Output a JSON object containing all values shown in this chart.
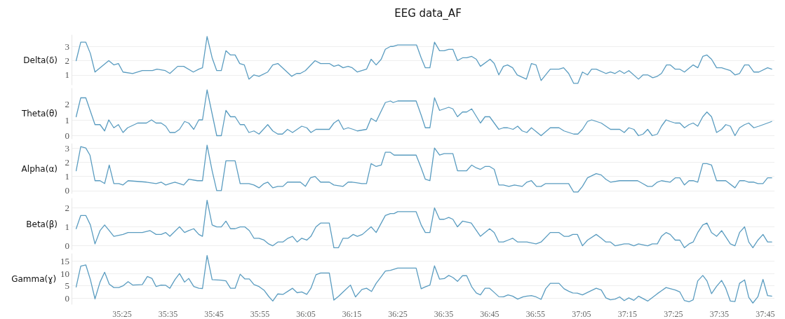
{
  "chart_data": [
    {
      "type": "line",
      "title": "EEG data_AF",
      "ylabel": "Delta(δ)",
      "xlim": [
        2114,
        2267
      ],
      "ylim": [
        0.3,
        3.8
      ],
      "yticks": [
        1,
        2,
        3
      ],
      "grid": "y",
      "marker": "none",
      "line_style": "solid",
      "tick_labels": "y",
      "series": [
        {
          "color": "#5a9cc0",
          "x": [
            2115.0,
            2116.0,
            2117.1,
            2118.1,
            2119.1,
            2120.2,
            2122.1,
            2123.2,
            2124.2,
            2125.2,
            2127.3,
            2129.4,
            2131.6,
            2132.6,
            2134.4,
            2135.4,
            2137.1,
            2138.4,
            2140.5,
            2141.7,
            2142.5,
            2143.5,
            2144.6,
            2145.6,
            2146.6,
            2147.6,
            2148.6,
            2149.6,
            2150.6,
            2151.6,
            2152.6,
            2153.7,
            2154.8,
            2156.7,
            2157.8,
            2158.9,
            2161.9,
            2163.0,
            2163.8,
            2164.9,
            2167.0,
            2168.2,
            2170.1,
            2171.1,
            2172.1,
            2173.1,
            2174.2,
            2175.1,
            2176.2,
            2178.2,
            2179.2,
            2180.3,
            2181.4,
            2182.3,
            2183.4,
            2184.0,
            2185.0,
            2189.1,
            2190.1,
            2191.0,
            2192.0,
            2193.0,
            2194.1,
            2195.1,
            2196.1,
            2197.0,
            2198.0,
            2199.1,
            2200.0,
            2201.1,
            2202.1,
            2203.0,
            2205.1,
            2206.0,
            2207.0,
            2208.0,
            2208.9,
            2210.0,
            2211.0,
            2213.0,
            2214.1,
            2215.1,
            2216.2,
            2218.2,
            2220.1,
            2221.1,
            2222.2,
            2223.3,
            2224.2,
            2225.2,
            2226.3,
            2227.2,
            2228.2,
            2230.3,
            2231.3,
            2232.3,
            2233.3,
            2234.3,
            2235.3,
            2237.4,
            2238.4,
            2239.4,
            2240.5,
            2241.5,
            2242.4,
            2243.5,
            2244.3,
            2245.4,
            2246.4,
            2247.4,
            2249.3,
            2250.3,
            2251.4,
            2252.3,
            2253.3,
            2254.4,
            2255.5,
            2256.4,
            2257.4,
            2258.4,
            2259.4,
            2260.5,
            2261.4,
            2262.5,
            2263.6,
            2265.5,
            2266.4
          ],
          "values": [
            2.0,
            3.3,
            3.3,
            2.5,
            1.2,
            1.5,
            2.0,
            1.7,
            1.8,
            1.2,
            1.1,
            1.3,
            1.3,
            1.4,
            1.3,
            1.1,
            1.6,
            1.6,
            1.2,
            1.4,
            1.5,
            3.7,
            2.2,
            1.3,
            1.3,
            2.7,
            2.4,
            2.4,
            1.8,
            1.7,
            0.7,
            1.0,
            0.9,
            1.2,
            1.7,
            1.8,
            0.9,
            1.1,
            1.1,
            1.3,
            2.0,
            1.8,
            1.8,
            1.6,
            1.7,
            1.5,
            1.6,
            1.5,
            1.2,
            1.4,
            2.1,
            1.7,
            2.1,
            2.8,
            3.0,
            3.0,
            3.1,
            3.1,
            2.2,
            1.5,
            1.5,
            3.3,
            2.7,
            2.7,
            2.8,
            2.8,
            2.0,
            2.2,
            2.2,
            2.3,
            2.1,
            1.6,
            2.1,
            1.8,
            1.0,
            1.6,
            1.7,
            1.5,
            1.0,
            0.7,
            1.8,
            1.7,
            0.6,
            1.4,
            1.4,
            1.5,
            1.1,
            0.4,
            0.4,
            1.2,
            1.0,
            1.4,
            1.4,
            1.1,
            1.2,
            1.1,
            1.3,
            1.1,
            1.3,
            0.7,
            1.0,
            1.0,
            0.8,
            0.9,
            1.1,
            1.7,
            1.7,
            1.4,
            1.4,
            1.2,
            1.7,
            1.5,
            2.3,
            2.4,
            2.1,
            1.5,
            1.5,
            1.4,
            1.3,
            1.0,
            1.1,
            1.7,
            1.7,
            1.2,
            1.2,
            1.5,
            1.4
          ]
        }
      ]
    },
    {
      "type": "line",
      "ylabel": "Theta(θ)",
      "xlim": [
        2114,
        2267
      ],
      "ylim": [
        -0.2,
        3.0
      ],
      "yticks": [
        0,
        1,
        2
      ],
      "grid": "y",
      "marker": "none",
      "line_style": "solid",
      "tick_labels": "y",
      "series": [
        {
          "color": "#5a9cc0",
          "x": [
            2115.0,
            2116.0,
            2117.1,
            2119.1,
            2120.2,
            2121.2,
            2122.1,
            2123.2,
            2124.2,
            2125.2,
            2126.2,
            2128.4,
            2130.3,
            2131.4,
            2132.4,
            2133.5,
            2134.5,
            2135.4,
            2136.5,
            2137.5,
            2138.6,
            2139.5,
            2140.6,
            2141.7,
            2142.5,
            2143.5,
            2145.6,
            2146.6,
            2147.6,
            2148.6,
            2149.6,
            2150.7,
            2151.6,
            2152.6,
            2153.7,
            2154.8,
            2156.7,
            2157.8,
            2158.9,
            2159.9,
            2161.0,
            2162.1,
            2164.1,
            2165.2,
            2166.1,
            2167.2,
            2170.1,
            2171.1,
            2172.1,
            2173.2,
            2174.2,
            2175.3,
            2176.2,
            2178.2,
            2179.2,
            2180.3,
            2182.3,
            2183.4,
            2184.0,
            2185.0,
            2189.0,
            2190.1,
            2191.0,
            2192.0,
            2193.0,
            2194.1,
            2195.1,
            2196.1,
            2197.0,
            2198.0,
            2199.1,
            2200.0,
            2201.1,
            2203.0,
            2204.0,
            2205.0,
            2207.0,
            2208.0,
            2208.9,
            2210.1,
            2211.1,
            2212.1,
            2213.1,
            2214.1,
            2216.2,
            2218.2,
            2220.1,
            2221.2,
            2223.3,
            2224.2,
            2225.2,
            2226.3,
            2227.2,
            2229.3,
            2231.3,
            2233.3,
            2234.3,
            2235.3,
            2236.4,
            2237.4,
            2238.4,
            2239.4,
            2240.4,
            2241.5,
            2242.4,
            2243.4,
            2244.3,
            2245.4,
            2246.4,
            2247.4,
            2248.4,
            2249.3,
            2250.3,
            2251.4,
            2252.3,
            2253.3,
            2254.4,
            2255.5,
            2256.4,
            2257.4,
            2258.4,
            2259.4,
            2260.5,
            2261.4,
            2262.5,
            2263.6,
            2265.5,
            2266.4
          ],
          "values": [
            1.2,
            2.4,
            2.4,
            0.7,
            0.7,
            0.3,
            1.0,
            0.5,
            0.7,
            0.2,
            0.5,
            0.8,
            0.8,
            1.0,
            0.8,
            0.8,
            0.6,
            0.2,
            0.2,
            0.4,
            0.9,
            0.8,
            0.4,
            1.0,
            1.0,
            2.9,
            0.0,
            0.0,
            1.6,
            1.2,
            1.2,
            0.7,
            0.7,
            0.2,
            0.3,
            0.1,
            0.7,
            0.3,
            0.1,
            0.1,
            0.4,
            0.2,
            0.6,
            0.5,
            0.2,
            0.4,
            0.4,
            0.8,
            1.0,
            0.4,
            0.5,
            0.4,
            0.3,
            0.4,
            1.1,
            0.9,
            2.1,
            2.2,
            2.1,
            2.2,
            2.2,
            1.3,
            0.5,
            0.5,
            2.4,
            1.6,
            1.7,
            1.8,
            1.7,
            1.2,
            1.5,
            1.5,
            1.7,
            0.8,
            1.2,
            1.2,
            0.4,
            0.5,
            0.5,
            0.4,
            0.6,
            0.3,
            0.2,
            0.5,
            0.0,
            0.5,
            0.5,
            0.3,
            0.1,
            0.1,
            0.4,
            0.9,
            1.0,
            0.8,
            0.4,
            0.4,
            0.2,
            0.5,
            0.4,
            0.0,
            0.1,
            0.4,
            0.0,
            0.1,
            0.6,
            1.0,
            0.9,
            0.8,
            0.8,
            0.5,
            0.7,
            0.8,
            0.6,
            1.2,
            1.5,
            1.2,
            0.2,
            0.4,
            0.7,
            0.6,
            0.0,
            0.5,
            0.7,
            0.8,
            0.5,
            0.6,
            0.8,
            0.9
          ]
        }
      ]
    },
    {
      "type": "line",
      "ylabel": "Alpha(α)",
      "xlim": [
        2114,
        2267
      ],
      "ylim": [
        -0.2,
        3.3
      ],
      "yticks": [
        0,
        1,
        2,
        3
      ],
      "grid": "y",
      "marker": "none",
      "line_style": "solid",
      "tick_labels": "y",
      "series": [
        {
          "color": "#5a9cc0",
          "x": [
            2115.0,
            2116.0,
            2117.1,
            2118.0,
            2119.1,
            2120.2,
            2121.2,
            2122.2,
            2123.2,
            2124.3,
            2125.2,
            2126.3,
            2130.3,
            2132.4,
            2133.5,
            2134.5,
            2135.4,
            2136.5,
            2137.5,
            2138.4,
            2139.5,
            2141.4,
            2142.5,
            2143.5,
            2144.6,
            2145.6,
            2146.6,
            2147.6,
            2149.6,
            2150.7,
            2152.6,
            2153.7,
            2154.8,
            2155.9,
            2156.7,
            2157.8,
            2158.9,
            2160.0,
            2161.0,
            2163.8,
            2164.9,
            2166.0,
            2167.0,
            2168.2,
            2170.1,
            2171.1,
            2173.1,
            2174.2,
            2175.1,
            2177.2,
            2178.2,
            2179.2,
            2180.3,
            2181.4,
            2182.3,
            2183.4,
            2184.2,
            2189.0,
            2190.1,
            2191.0,
            2192.0,
            2193.0,
            2194.1,
            2195.1,
            2197.0,
            2198.0,
            2200.0,
            2201.1,
            2202.1,
            2203.0,
            2204.0,
            2205.0,
            2206.0,
            2207.0,
            2208.0,
            2209.2,
            2210.4,
            2212.1,
            2213.1,
            2214.1,
            2215.2,
            2216.2,
            2217.2,
            2222.2,
            2223.3,
            2224.2,
            2225.2,
            2226.3,
            2228.2,
            2229.3,
            2230.3,
            2231.3,
            2233.3,
            2234.3,
            2237.2,
            2238.3,
            2239.4,
            2240.4,
            2241.5,
            2242.4,
            2244.3,
            2245.4,
            2246.4,
            2247.4,
            2248.4,
            2249.3,
            2250.3,
            2251.4,
            2252.3,
            2253.3,
            2254.4,
            2256.4,
            2258.4,
            2259.4,
            2260.5,
            2261.4,
            2262.5,
            2263.4,
            2264.5,
            2265.5,
            2266.4
          ],
          "values": [
            1.4,
            3.1,
            3.0,
            2.5,
            0.7,
            0.7,
            0.5,
            1.8,
            0.5,
            0.5,
            0.4,
            0.7,
            0.6,
            0.5,
            0.6,
            0.4,
            0.5,
            0.6,
            0.5,
            0.4,
            0.8,
            0.7,
            0.7,
            3.2,
            1.4,
            0.0,
            0.0,
            2.1,
            2.1,
            0.5,
            0.5,
            0.4,
            0.2,
            0.5,
            0.6,
            0.2,
            0.3,
            0.3,
            0.6,
            0.6,
            0.3,
            0.9,
            1.0,
            0.6,
            0.6,
            0.4,
            0.3,
            0.6,
            0.6,
            0.5,
            0.5,
            1.9,
            1.7,
            1.8,
            2.7,
            2.7,
            2.5,
            2.5,
            1.6,
            0.8,
            0.7,
            3.0,
            2.5,
            2.6,
            2.6,
            1.4,
            1.4,
            1.8,
            1.6,
            1.5,
            1.7,
            1.7,
            1.5,
            0.4,
            0.4,
            0.3,
            0.4,
            0.3,
            0.6,
            0.7,
            0.3,
            0.3,
            0.5,
            0.5,
            -0.1,
            -0.1,
            0.3,
            0.9,
            1.2,
            1.1,
            0.8,
            0.6,
            0.7,
            0.7,
            0.7,
            0.5,
            0.3,
            0.3,
            0.6,
            0.7,
            0.6,
            0.9,
            0.9,
            0.4,
            0.7,
            0.7,
            0.6,
            1.9,
            1.9,
            1.8,
            0.7,
            0.7,
            0.2,
            0.7,
            0.7,
            0.6,
            0.6,
            0.5,
            0.5,
            0.9,
            0.9
          ]
        }
      ]
    },
    {
      "type": "line",
      "ylabel": "Beta(β)",
      "xlim": [
        2114,
        2267
      ],
      "ylim": [
        -0.2,
        2.5
      ],
      "yticks": [
        0,
        1,
        2
      ],
      "grid": "y",
      "marker": "none",
      "line_style": "solid",
      "tick_labels": "y",
      "series": [
        {
          "color": "#5a9cc0",
          "x": [
            2115.0,
            2116.0,
            2117.1,
            2118.1,
            2119.1,
            2120.2,
            2121.2,
            2122.2,
            2123.2,
            2125.2,
            2126.3,
            2127.3,
            2129.4,
            2131.1,
            2132.4,
            2133.5,
            2134.5,
            2135.4,
            2137.5,
            2138.6,
            2139.5,
            2140.6,
            2141.7,
            2142.5,
            2143.5,
            2144.6,
            2145.6,
            2146.6,
            2147.6,
            2148.6,
            2149.6,
            2150.7,
            2151.7,
            2152.7,
            2153.7,
            2154.8,
            2155.9,
            2156.9,
            2157.8,
            2158.9,
            2160.0,
            2161.1,
            2162.1,
            2163.1,
            2164.1,
            2165.2,
            2166.1,
            2167.2,
            2168.2,
            2170.1,
            2171.1,
            2172.1,
            2173.1,
            2174.2,
            2175.3,
            2176.2,
            2177.3,
            2179.2,
            2180.3,
            2182.3,
            2183.4,
            2184.2,
            2185.0,
            2189.0,
            2190.1,
            2191.0,
            2192.0,
            2193.0,
            2194.1,
            2195.1,
            2196.1,
            2197.0,
            2198.0,
            2199.1,
            2201.0,
            2203.0,
            2205.0,
            2206.0,
            2207.0,
            2208.0,
            2209.0,
            2210.0,
            2211.1,
            2212.3,
            2213.1,
            2215.1,
            2216.2,
            2218.2,
            2220.1,
            2221.2,
            2222.2,
            2223.1,
            2224.1,
            2225.2,
            2226.3,
            2228.2,
            2229.3,
            2230.3,
            2231.3,
            2232.3,
            2234.3,
            2235.3,
            2236.4,
            2237.4,
            2239.4,
            2240.4,
            2241.5,
            2242.4,
            2243.4,
            2244.3,
            2245.4,
            2246.4,
            2247.4,
            2248.4,
            2249.3,
            2250.3,
            2251.4,
            2252.3,
            2253.3,
            2254.4,
            2255.5,
            2257.4,
            2258.4,
            2259.4,
            2260.5,
            2261.4,
            2262.3,
            2263.4,
            2264.5,
            2265.5,
            2266.4
          ],
          "values": [
            0.9,
            1.6,
            1.6,
            1.1,
            0.1,
            0.8,
            1.1,
            0.8,
            0.5,
            0.6,
            0.7,
            0.7,
            0.7,
            0.8,
            0.6,
            0.6,
            0.7,
            0.5,
            1.0,
            0.7,
            0.8,
            0.9,
            0.6,
            0.5,
            2.4,
            1.1,
            1.0,
            1.0,
            1.3,
            0.9,
            0.9,
            1.0,
            1.0,
            0.8,
            0.4,
            0.4,
            0.3,
            0.1,
            0.0,
            0.2,
            0.2,
            0.4,
            0.5,
            0.2,
            0.4,
            0.3,
            0.5,
            1.0,
            1.2,
            1.2,
            -0.1,
            -0.1,
            0.4,
            0.4,
            0.6,
            0.5,
            0.6,
            1.0,
            0.7,
            1.6,
            1.7,
            1.7,
            1.8,
            1.8,
            1.1,
            0.7,
            0.7,
            2.0,
            1.4,
            1.4,
            1.5,
            1.4,
            1.0,
            1.3,
            1.2,
            0.5,
            0.9,
            0.7,
            0.2,
            0.2,
            0.3,
            0.4,
            0.2,
            0.2,
            0.2,
            0.1,
            0.2,
            0.7,
            0.7,
            0.5,
            0.5,
            0.6,
            0.6,
            0.0,
            0.3,
            0.6,
            0.4,
            0.2,
            0.2,
            0.0,
            0.1,
            0.1,
            0.0,
            0.1,
            0.0,
            0.1,
            0.1,
            0.5,
            0.7,
            0.6,
            0.3,
            0.3,
            -0.1,
            0.1,
            0.2,
            0.7,
            1.1,
            1.2,
            0.7,
            0.5,
            0.8,
            0.1,
            0.0,
            0.7,
            1.0,
            0.2,
            -0.1,
            0.3,
            0.6,
            0.2,
            0.2
          ]
        }
      ]
    },
    {
      "type": "line",
      "ylabel": "Gamma(ɣ)",
      "xlim": [
        2114,
        2267
      ],
      "xticks": [
        {
          "value": 2125,
          "label": "35:25"
        },
        {
          "value": 2135,
          "label": "35:35"
        },
        {
          "value": 2145,
          "label": "35:45"
        },
        {
          "value": 2155,
          "label": "35:55"
        },
        {
          "value": 2165,
          "label": "36:05"
        },
        {
          "value": 2175,
          "label": "36:15"
        },
        {
          "value": 2185,
          "label": "36:25"
        },
        {
          "value": 2195,
          "label": "36:35"
        },
        {
          "value": 2205,
          "label": "36:45"
        },
        {
          "value": 2215,
          "label": "36:55"
        },
        {
          "value": 2225,
          "label": "37:05"
        },
        {
          "value": 2235,
          "label": "37:15"
        },
        {
          "value": 2245,
          "label": "37:25"
        },
        {
          "value": 2255,
          "label": "37:35"
        },
        {
          "value": 2265,
          "label": "37:45"
        }
      ],
      "ylim": [
        -2.5,
        18
      ],
      "yticks": [
        0,
        5,
        10,
        15
      ],
      "grid": "y",
      "marker": "none",
      "line_style": "solid",
      "series": [
        {
          "color": "#5a9cc0",
          "x": [
            2115.0,
            2116.0,
            2117.1,
            2118.1,
            2119.1,
            2120.2,
            2121.2,
            2122.2,
            2123.2,
            2124.3,
            2125.2,
            2126.3,
            2127.3,
            2129.4,
            2130.5,
            2131.5,
            2132.4,
            2133.5,
            2134.5,
            2135.4,
            2136.5,
            2137.5,
            2138.6,
            2139.5,
            2140.6,
            2141.7,
            2142.5,
            2143.5,
            2144.6,
            2146.6,
            2147.6,
            2148.6,
            2149.6,
            2150.7,
            2151.7,
            2152.7,
            2153.7,
            2154.8,
            2155.9,
            2156.9,
            2157.8,
            2158.9,
            2160.0,
            2161.1,
            2162.1,
            2163.1,
            2164.1,
            2165.2,
            2166.1,
            2167.2,
            2168.2,
            2170.1,
            2171.1,
            2172.1,
            2173.1,
            2174.7,
            2175.8,
            2177.2,
            2178.2,
            2179.3,
            2180.3,
            2181.4,
            2182.3,
            2183.4,
            2185.0,
            2189.0,
            2190.1,
            2191.0,
            2192.0,
            2193.0,
            2194.1,
            2195.1,
            2196.1,
            2197.0,
            2198.0,
            2199.1,
            2200.0,
            2201.1,
            2202.1,
            2203.0,
            2204.0,
            2205.0,
            2206.0,
            2207.0,
            2208.0,
            2209.0,
            2210.0,
            2211.1,
            2212.3,
            2213.1,
            2214.1,
            2215.1,
            2216.2,
            2217.2,
            2218.2,
            2220.1,
            2221.2,
            2222.2,
            2223.1,
            2224.1,
            2225.2,
            2226.3,
            2228.2,
            2229.3,
            2230.3,
            2231.3,
            2232.3,
            2233.3,
            2234.3,
            2235.3,
            2236.4,
            2237.4,
            2238.4,
            2239.4,
            2241.5,
            2242.4,
            2243.4,
            2245.4,
            2246.4,
            2247.4,
            2248.4,
            2249.3,
            2250.3,
            2251.4,
            2252.3,
            2253.3,
            2254.4,
            2255.5,
            2256.4,
            2257.4,
            2258.4,
            2259.4,
            2260.5,
            2261.4,
            2262.3,
            2263.4,
            2264.5,
            2265.5,
            2266.4
          ],
          "values": [
            4.5,
            13,
            13.5,
            7.5,
            -0.3,
            6.5,
            10.5,
            5.7,
            4.3,
            4.3,
            5,
            6.7,
            5.3,
            5.5,
            8.8,
            8,
            4.7,
            5.3,
            5.2,
            4,
            7.5,
            10,
            6.5,
            8,
            4.7,
            4,
            3.9,
            17.3,
            7.5,
            7.3,
            7,
            4,
            4,
            9.7,
            7.8,
            7.8,
            5.5,
            4.7,
            3.2,
            0.7,
            -1.2,
            1.7,
            1.5,
            2.8,
            4,
            2.2,
            2.5,
            1.5,
            4,
            9.5,
            10.2,
            10.2,
            -0.8,
            0.7,
            2.5,
            5.3,
            0.5,
            3.5,
            4,
            2.7,
            6,
            8.7,
            11,
            11.3,
            12.2,
            12.2,
            3.8,
            4.6,
            5.3,
            13.1,
            7.7,
            7.9,
            9.2,
            8.4,
            6.8,
            9.1,
            9.1,
            4.6,
            2.1,
            1.3,
            4,
            4,
            2.3,
            0.6,
            0.5,
            1.3,
            0.8,
            -0.4,
            0.5,
            0.8,
            1,
            0.5,
            -0.5,
            3.8,
            6,
            6,
            3.8,
            2.8,
            2.1,
            2,
            1.3,
            2.3,
            4,
            3.3,
            0.1,
            -0.7,
            -0.4,
            0.5,
            -1,
            0.1,
            -0.9,
            0.8,
            -0.2,
            -1.2,
            1.8,
            3,
            4.3,
            3.3,
            2.5,
            -1,
            -1.5,
            -0.7,
            7,
            9.2,
            7,
            1.8,
            4.8,
            7.2,
            4,
            -1.2,
            -1.4,
            6,
            7.4,
            0.3,
            -2,
            0.6,
            7.6,
            1,
            0.8
          ]
        }
      ]
    }
  ]
}
